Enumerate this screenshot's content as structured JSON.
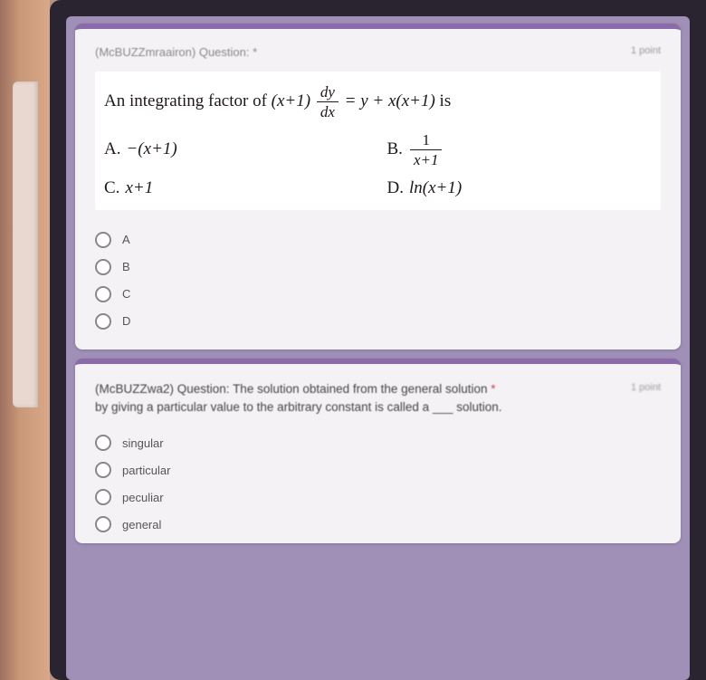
{
  "q1": {
    "id": "(McBUZZmraairon) Question: *",
    "points": "1 point",
    "stem_prefix": "An integrating factor of ",
    "stem_suffix_is": " is",
    "options": {
      "A_label": "A.",
      "A_val": "−(x+1)",
      "B_label": "B.",
      "B_num": "1",
      "B_den": "x+1",
      "C_label": "C.",
      "C_val": "x+1",
      "D_label": "D.",
      "D_val": "ln(x+1)"
    },
    "radios": [
      "A",
      "B",
      "C",
      "D"
    ]
  },
  "q2": {
    "id": "(McBUZZwa2) Question:",
    "points": "1 point",
    "text_a": "The solution obtained from the general solution",
    "text_b": "by giving a particular value to the arbitrary constant is called a ___ solution.",
    "radios": [
      "singular",
      "particular",
      "peculiar",
      "general"
    ]
  },
  "colors": {
    "card_bg": "#f5f2f5",
    "accent": "#8a6aa8",
    "form_bg": "#a090b8",
    "tablet": "#2a2430"
  }
}
